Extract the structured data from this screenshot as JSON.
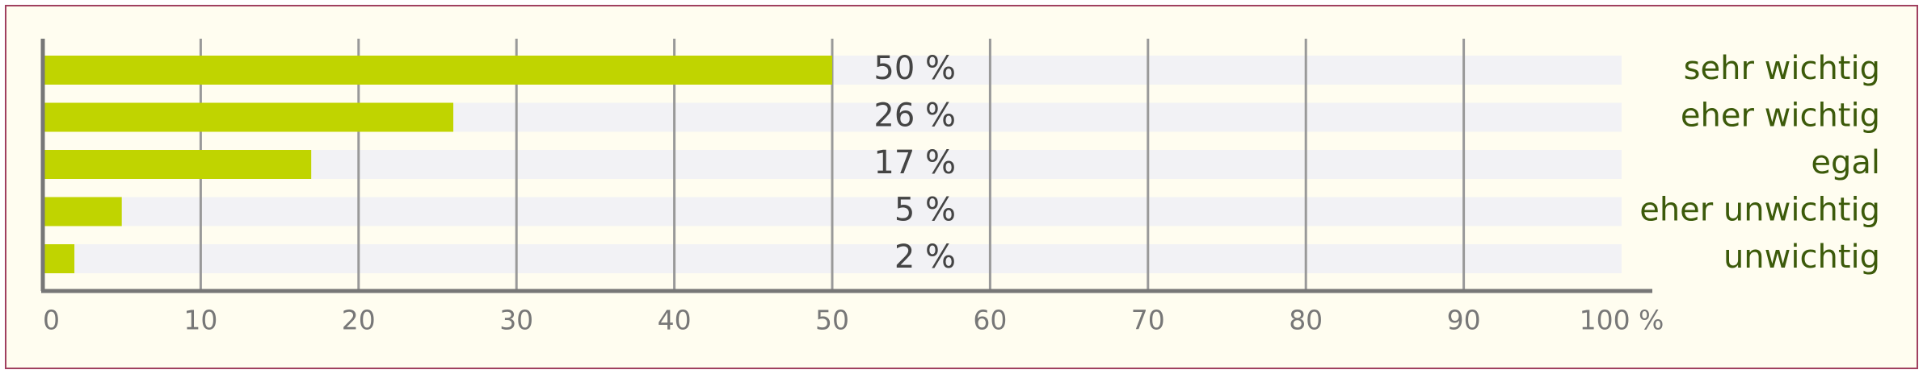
{
  "chart_data": {
    "type": "bar",
    "orientation": "horizontal",
    "categories": [
      "sehr wichtig",
      "eher wichtig",
      "egal",
      "eher unwichtig",
      "unwichtig"
    ],
    "values": [
      50,
      26,
      17,
      5,
      2
    ],
    "value_labels": [
      "50 %",
      "26 %",
      "17 %",
      "5 %",
      "2 %"
    ],
    "color": "#c0d400",
    "xlim": [
      0,
      100
    ],
    "xticks": [
      0,
      10,
      20,
      30,
      40,
      50,
      60,
      70,
      80,
      90,
      {
        "value": 100,
        "label": "100 %"
      }
    ],
    "grid": true
  }
}
